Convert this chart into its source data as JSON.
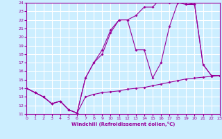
{
  "xlabel": "Windchill (Refroidissement éolien,°C)",
  "bg_color": "#cceeff",
  "line_color": "#990099",
  "grid_color": "#ffffff",
  "xmin": 0,
  "xmax": 23,
  "ymin": 11,
  "ymax": 24,
  "line1_x": [
    0,
    1,
    2,
    3,
    4,
    5,
    6,
    7,
    8,
    9,
    10,
    11,
    12,
    13,
    14,
    15,
    16,
    17,
    18,
    19,
    20,
    21,
    22,
    23
  ],
  "line1_y": [
    14.0,
    13.5,
    13.0,
    12.2,
    12.5,
    11.5,
    11.1,
    13.0,
    13.3,
    13.5,
    13.6,
    13.7,
    13.9,
    14.0,
    14.1,
    14.3,
    14.5,
    14.7,
    14.9,
    15.1,
    15.2,
    15.3,
    15.4,
    15.5
  ],
  "line2_x": [
    0,
    1,
    2,
    3,
    4,
    5,
    6,
    7,
    8,
    9,
    10,
    11,
    12,
    13,
    14,
    15,
    16,
    17,
    18,
    19,
    20,
    21,
    22,
    23
  ],
  "line2_y": [
    14.0,
    13.5,
    13.0,
    12.2,
    12.5,
    11.5,
    11.1,
    15.2,
    17.0,
    18.0,
    20.5,
    22.0,
    22.0,
    22.5,
    23.5,
    23.5,
    24.5,
    24.0,
    24.0,
    24.0,
    23.8,
    16.8,
    15.5,
    15.5
  ],
  "line3_x": [
    0,
    1,
    2,
    3,
    4,
    5,
    6,
    7,
    8,
    9,
    10,
    11,
    12,
    13,
    14,
    15,
    16,
    17,
    18,
    19,
    20,
    21,
    22,
    23
  ],
  "line3_y": [
    14.0,
    13.5,
    13.0,
    12.2,
    12.5,
    11.5,
    11.1,
    15.2,
    17.0,
    18.5,
    20.8,
    22.0,
    22.0,
    18.5,
    18.5,
    15.2,
    17.0,
    21.2,
    24.0,
    23.8,
    23.8,
    16.8,
    15.5,
    15.5
  ],
  "yticks": [
    11,
    12,
    13,
    14,
    15,
    16,
    17,
    18,
    19,
    20,
    21,
    22,
    23,
    24
  ],
  "xticks": [
    0,
    1,
    2,
    3,
    4,
    5,
    6,
    7,
    8,
    9,
    10,
    11,
    12,
    13,
    14,
    15,
    16,
    17,
    18,
    19,
    20,
    21,
    22,
    23
  ]
}
